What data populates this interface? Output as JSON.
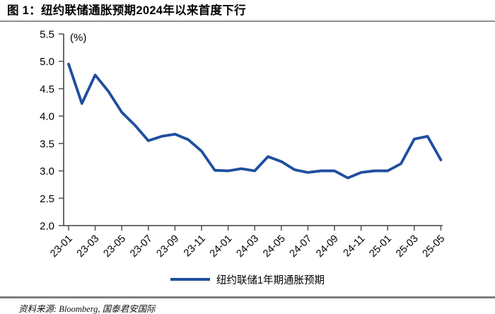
{
  "title": "图 1：纽约联储通胀预期2024年以来首度下行",
  "source_note": "资料来源: Bloomberg, 国泰君安国际",
  "chart_data": {
    "type": "line",
    "title": "纽约联储通胀预期2024年以来首度下行",
    "unit_label": "(%)",
    "xlabel": "",
    "ylabel": "(%)",
    "ylim": [
      2.0,
      5.5
    ],
    "y_ticks": [
      2.0,
      2.5,
      3.0,
      3.5,
      4.0,
      4.5,
      5.0,
      5.5
    ],
    "x_tick_step": 2,
    "grid": false,
    "legend_position": "bottom",
    "line_color": "#1F4E9E",
    "axis_color": "#595959",
    "text_color": "#000000",
    "x": [
      "23-01",
      "23-02",
      "23-03",
      "23-04",
      "23-05",
      "23-06",
      "23-07",
      "23-08",
      "23-09",
      "23-10",
      "23-11",
      "23-12",
      "24-01",
      "24-02",
      "24-03",
      "24-04",
      "24-05",
      "24-06",
      "24-07",
      "24-08",
      "24-09",
      "24-10",
      "24-11",
      "24-12",
      "25-01",
      "25-02",
      "25-03",
      "25-04",
      "25-05"
    ],
    "series": [
      {
        "name": "纽约联储1年期通胀预期",
        "values": [
          4.95,
          4.23,
          4.75,
          4.45,
          4.07,
          3.83,
          3.55,
          3.63,
          3.67,
          3.57,
          3.36,
          3.01,
          3.0,
          3.04,
          3.0,
          3.26,
          3.17,
          3.02,
          2.97,
          3.0,
          3.0,
          2.87,
          2.97,
          3.0,
          3.0,
          3.13,
          3.58,
          3.63,
          3.2
        ]
      }
    ]
  }
}
